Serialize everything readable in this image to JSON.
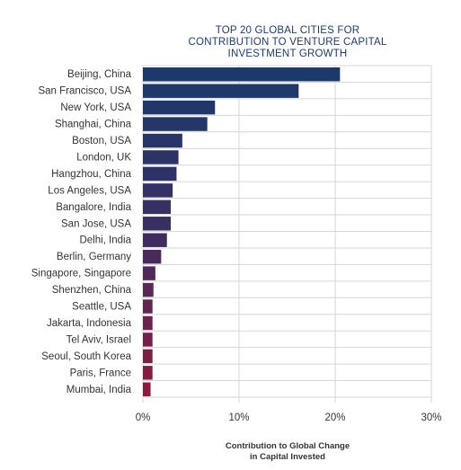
{
  "chart_data": {
    "type": "bar",
    "orientation": "horizontal",
    "title_lines": [
      "TOP 20 GLOBAL CITIES FOR",
      "CONTRIBUTION TO VENTURE CAPITAL",
      "INVESTMENT GROWTH"
    ],
    "xlabel_lines": [
      "Contribution to Global Change",
      "in Capital Invested"
    ],
    "ylabel": "",
    "categories": [
      "Beijing, China",
      "San Francisco, USA",
      "New York, USA",
      "Shanghai, China",
      "Boston, USA",
      "London, UK",
      "Hangzhou, China",
      "Los Angeles, USA",
      "Bangalore, India",
      "San Jose, USA",
      "Delhi, India",
      "Berlin, Germany",
      "Singapore, Singapore",
      "Shenzhen, China",
      "Seattle, USA",
      "Jakarta, Indonesia",
      "Tel Aviv, Israel",
      "Seoul, South Korea",
      "Paris, France",
      "Mumbai, India"
    ],
    "values": [
      20.5,
      16.2,
      7.5,
      6.7,
      4.1,
      3.7,
      3.5,
      3.1,
      2.9,
      2.9,
      2.5,
      1.9,
      1.3,
      1.1,
      1.0,
      1.0,
      1.0,
      1.0,
      1.0,
      0.8
    ],
    "xlim": [
      0,
      30
    ],
    "x_ticks": [
      0,
      10,
      20,
      30
    ],
    "x_tick_labels": [
      "0%",
      "10%",
      "20%",
      "30%"
    ],
    "grid": {
      "vertical": true,
      "horizontal": true
    },
    "legend": "none",
    "colors": {
      "gradient_start": "#1b3a6b",
      "gradient_mid": "#3b2e63",
      "gradient_end": "#8e1a3f",
      "grid": "#d6d6d6",
      "title": "#1d3a6e"
    }
  }
}
